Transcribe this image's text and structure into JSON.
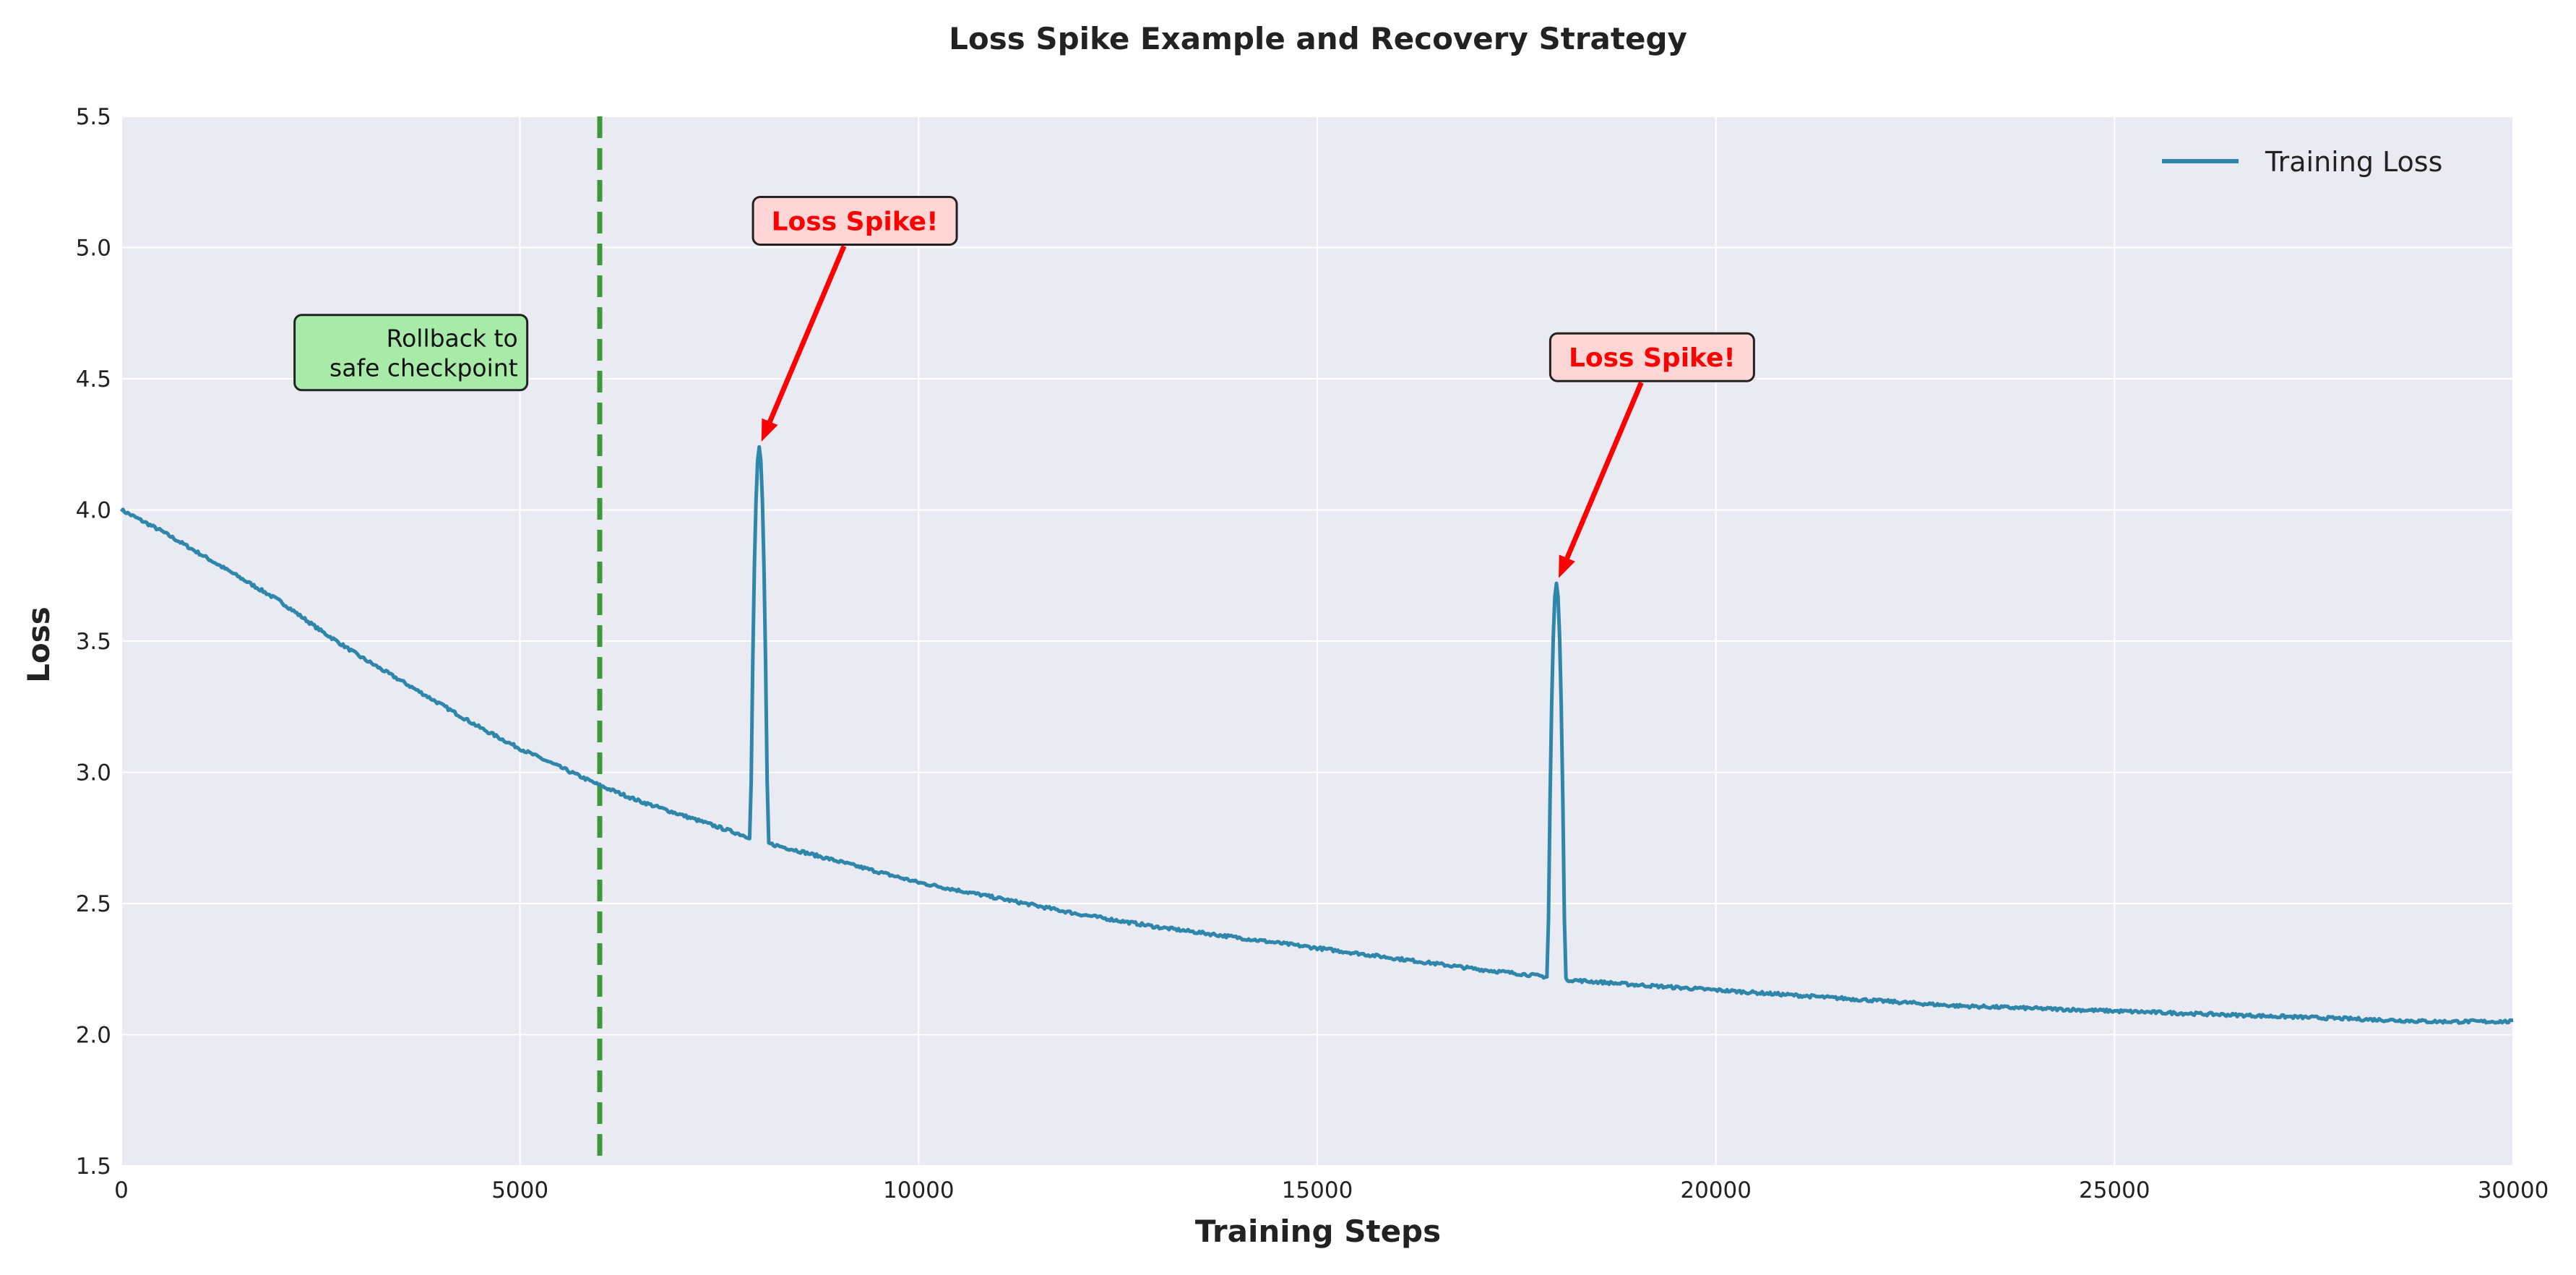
{
  "chart_data": {
    "type": "line",
    "title": "Loss Spike Example and Recovery Strategy",
    "xlabel": "Training Steps",
    "ylabel": "Loss",
    "xlim": [
      0,
      30000
    ],
    "ylim": [
      1.5,
      5.5
    ],
    "xticks": [
      0,
      5000,
      10000,
      15000,
      20000,
      25000,
      30000
    ],
    "yticks": [
      1.5,
      2.0,
      2.5,
      3.0,
      3.5,
      4.0,
      4.5,
      5.0,
      5.5
    ],
    "grid": true,
    "legend_placement": "top-right",
    "series": [
      {
        "name": "Training Loss",
        "color": "#2e86ab",
        "baseline_points": [
          [
            0,
            4.0
          ],
          [
            500,
            3.92
          ],
          [
            1000,
            3.83
          ],
          [
            1500,
            3.74
          ],
          [
            2000,
            3.65
          ],
          [
            2500,
            3.54
          ],
          [
            3000,
            3.44
          ],
          [
            3500,
            3.35
          ],
          [
            4000,
            3.26
          ],
          [
            4500,
            3.17
          ],
          [
            5000,
            3.09
          ],
          [
            5500,
            3.02
          ],
          [
            6000,
            2.95
          ],
          [
            6500,
            2.89
          ],
          [
            7000,
            2.84
          ],
          [
            7500,
            2.79
          ],
          [
            7900,
            2.75
          ],
          [
            8100,
            2.73
          ],
          [
            8500,
            2.7
          ],
          [
            9000,
            2.66
          ],
          [
            9500,
            2.62
          ],
          [
            10000,
            2.58
          ],
          [
            11000,
            2.52
          ],
          [
            12000,
            2.46
          ],
          [
            13000,
            2.41
          ],
          [
            14000,
            2.37
          ],
          [
            15000,
            2.33
          ],
          [
            16000,
            2.29
          ],
          [
            17000,
            2.25
          ],
          [
            17900,
            2.22
          ],
          [
            18100,
            2.21
          ],
          [
            19000,
            2.19
          ],
          [
            20000,
            2.17
          ],
          [
            21000,
            2.15
          ],
          [
            22000,
            2.13
          ],
          [
            23000,
            2.11
          ],
          [
            24000,
            2.1
          ],
          [
            25000,
            2.09
          ],
          [
            26000,
            2.08
          ],
          [
            27000,
            2.07
          ],
          [
            28000,
            2.06
          ],
          [
            29000,
            2.05
          ],
          [
            30000,
            2.05
          ]
        ],
        "spikes": [
          {
            "start": 7900,
            "end": 8100,
            "peak_x": 8000,
            "peak_y": 4.24
          },
          {
            "start": 17900,
            "end": 18100,
            "peak_x": 18000,
            "peak_y": 3.72
          }
        ]
      }
    ],
    "vline": {
      "x": 6000,
      "color": "#3a9a3a",
      "style": "dashed"
    },
    "annotations": [
      {
        "text": "Loss Spike!",
        "x": 8000,
        "y": 4.24,
        "text_x": 9200,
        "text_y": 5.08,
        "color": "#ff0000",
        "box_color": "#ffd6d6"
      },
      {
        "text": "Loss Spike!",
        "x": 18000,
        "y": 3.72,
        "text_x": 19200,
        "text_y": 4.56,
        "color": "#ff0000",
        "box_color": "#ffd6d6"
      }
    ],
    "rollback_note": {
      "lines": [
        "Rollback to",
        "safe checkpoint"
      ],
      "x": 5000,
      "y": 4.6,
      "box_color": "#a8eba8"
    },
    "colors": {
      "plot_background": "#eaeaf2",
      "grid": "#ffffff",
      "line": "#2e86ab",
      "rollback_line": "#3a9a3a",
      "spike_text": "#ff0000",
      "spike_box": "#ffd6d6",
      "rollback_box": "#a8eba8"
    }
  }
}
